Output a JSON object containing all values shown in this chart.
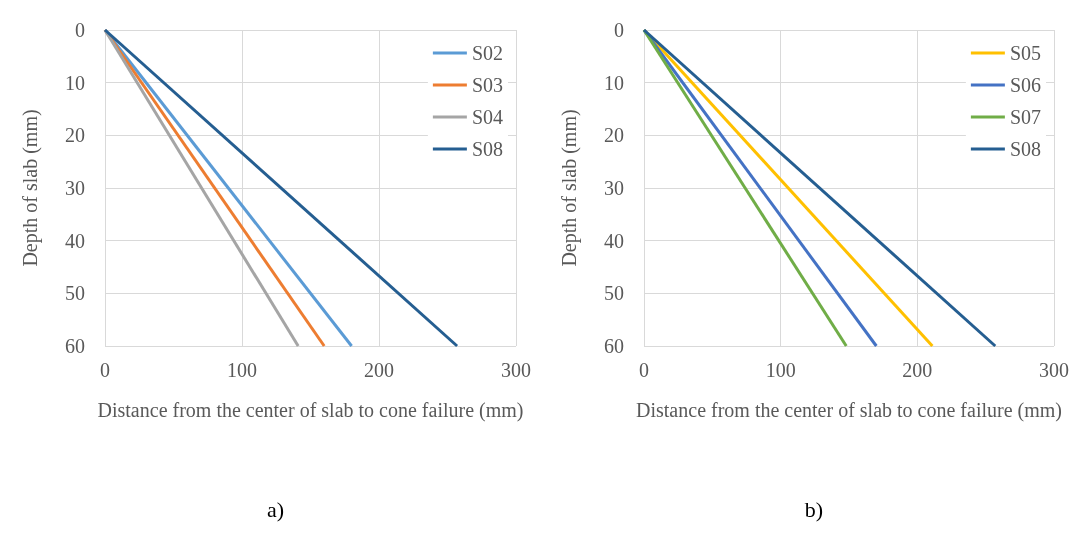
{
  "chart_data": [
    {
      "type": "line",
      "xlabel": "Distance from the center of slab to cone failure (mm)",
      "ylabel": "Depth of slab (mm)",
      "xlim": [
        0,
        300
      ],
      "xticks": [
        0,
        100,
        200,
        300
      ],
      "ylim": [
        60,
        0
      ],
      "yticks": [
        0,
        10,
        20,
        30,
        40,
        50,
        60
      ],
      "grid": true,
      "legend": "top right",
      "marker": "none",
      "annotations": [
        "a)"
      ],
      "series": [
        {
          "name": "S02",
          "color": "#5b9bd5",
          "x": [
            0,
            180
          ],
          "values": [
            0,
            60
          ]
        },
        {
          "name": "S03",
          "color": "#ed7d31",
          "x": [
            0,
            160
          ],
          "values": [
            0,
            60
          ]
        },
        {
          "name": "S04",
          "color": "#a5a5a5",
          "x": [
            0,
            141
          ],
          "values": [
            0,
            60
          ]
        },
        {
          "name": "S08",
          "color": "#255e91",
          "x": [
            0,
            257
          ],
          "values": [
            0,
            60
          ]
        }
      ]
    },
    {
      "type": "line",
      "xlabel": "Distance from the center of slab to cone failure (mm)",
      "ylabel": "Depth of slab (mm)",
      "xlim": [
        0,
        300
      ],
      "xticks": [
        0,
        100,
        200,
        300
      ],
      "ylim": [
        60,
        0
      ],
      "yticks": [
        0,
        10,
        20,
        30,
        40,
        50,
        60
      ],
      "grid": true,
      "legend": "top right",
      "marker": "none",
      "annotations": [
        "b)"
      ],
      "series": [
        {
          "name": "S05",
          "color": "#ffc000",
          "x": [
            0,
            211
          ],
          "values": [
            0,
            60
          ]
        },
        {
          "name": "S06",
          "color": "#4472c4",
          "x": [
            0,
            170
          ],
          "values": [
            0,
            60
          ]
        },
        {
          "name": "S07",
          "color": "#70ad47",
          "x": [
            0,
            148
          ],
          "values": [
            0,
            60
          ]
        },
        {
          "name": "S08",
          "color": "#255e91",
          "x": [
            0,
            257
          ],
          "values": [
            0,
            60
          ]
        }
      ]
    }
  ]
}
